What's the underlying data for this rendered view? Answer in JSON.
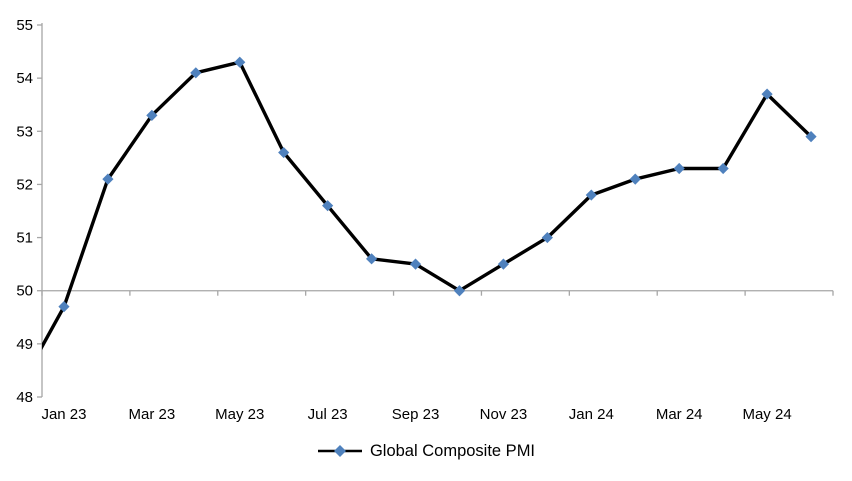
{
  "chart_data": {
    "type": "line",
    "title": "",
    "xlabel": "",
    "ylabel": "",
    "categories": [
      "Jan 23",
      "Feb 23",
      "Mar 23",
      "Apr 23",
      "May 23",
      "Jun 23",
      "Jul 23",
      "Aug 23",
      "Sep 23",
      "Oct 23",
      "Nov 23",
      "Dec 23",
      "Jan 24",
      "Feb 24",
      "Mar 24",
      "Apr 24",
      "May 24",
      "Jun 24"
    ],
    "series": [
      {
        "name": "Global Composite PMI",
        "values": [
          49.7,
          52.1,
          53.3,
          54.1,
          54.3,
          52.6,
          51.6,
          50.6,
          50.5,
          50.0,
          50.5,
          51.0,
          51.8,
          52.1,
          52.3,
          52.3,
          53.7,
          52.9
        ],
        "lead_in_clipped_point": {
          "category": "Dec 22",
          "value": 48.2
        }
      }
    ],
    "x_tick_labels": [
      "Jan 23",
      "Mar 23",
      "May 23",
      "Jul 23",
      "Sep 23",
      "Nov 23",
      "Jan 24",
      "Mar 24",
      "May 24"
    ],
    "x_label_interval": 2,
    "y_ticks": [
      55,
      54,
      53,
      52,
      51,
      50,
      49,
      48
    ],
    "ylim": [
      48,
      55
    ],
    "x_axis_cross_value": 50,
    "grid": "none (horizontal axis line drawn at value 50 only)",
    "legend": {
      "label": "Global Composite PMI",
      "position": "bottom-center"
    },
    "marker_shape": "diamond",
    "colors": {
      "line": "#000000",
      "marker": "#4F81BD",
      "axis": "#A6A6A6",
      "text": "#000000"
    }
  }
}
